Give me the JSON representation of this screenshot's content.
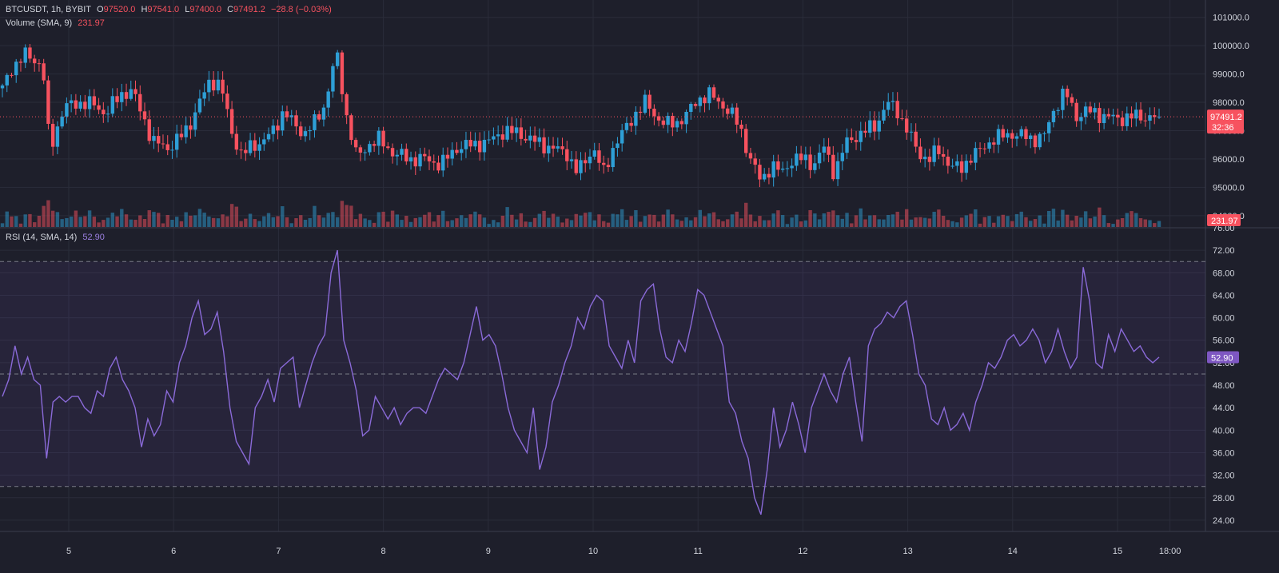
{
  "header": {
    "symbol": "BTCUSDT, 1h, BYBIT",
    "o_label": "O",
    "o_value": "97520.0",
    "h_label": "H",
    "h_value": "97541.0",
    "l_label": "L",
    "l_value": "97400.0",
    "c_label": "C",
    "c_value": "97491.2",
    "change": "−28.8 (−0.03%)"
  },
  "volume_legend": {
    "name": "Volume (SMA, 9)",
    "value": "231.97"
  },
  "rsi_legend": {
    "name": "RSI (14, SMA, 14)",
    "value": "52.90"
  },
  "colors": {
    "background": "#1e1f2b",
    "up": "#2e9fd6",
    "down": "#f7525f",
    "rsi": "#8a6ad8",
    "grid": "#2a2c3a",
    "text": "#d1d4dc"
  },
  "chart_data": [
    {
      "type": "candlestick",
      "title": "BTCUSDT, 1h, BYBIT",
      "x_ticks": [
        "5",
        "6",
        "7",
        "8",
        "9",
        "10",
        "11",
        "12",
        "13",
        "14",
        "15",
        "18:00"
      ],
      "y_ticks": [
        "101000.0",
        "100000.0",
        "99000.0",
        "98000.0",
        "97000.0",
        "96000.0",
        "95000.0",
        "94000.0"
      ],
      "ylim": [
        93600,
        101500
      ],
      "last_price": 97491.2,
      "last_price_label": "97491.2",
      "countdown_label": "32:36",
      "volume_sma_label": "231.97",
      "close_path": [
        {
          "day": 4.35,
          "close": 98300
        },
        {
          "day": 4.45,
          "close": 99200
        },
        {
          "day": 4.6,
          "close": 99700
        },
        {
          "day": 4.75,
          "close": 99300
        },
        {
          "day": 4.82,
          "close": 96300
        },
        {
          "day": 4.95,
          "close": 97800
        },
        {
          "day": 5.1,
          "close": 98000
        },
        {
          "day": 5.25,
          "close": 97900
        },
        {
          "day": 5.35,
          "close": 97600
        },
        {
          "day": 5.5,
          "close": 98300
        },
        {
          "day": 5.6,
          "close": 98400
        },
        {
          "day": 5.7,
          "close": 97600
        },
        {
          "day": 5.8,
          "close": 96600
        },
        {
          "day": 5.95,
          "close": 96400
        },
        {
          "day": 6.05,
          "close": 96700
        },
        {
          "day": 6.15,
          "close": 97200
        },
        {
          "day": 6.25,
          "close": 98000
        },
        {
          "day": 6.35,
          "close": 98800
        },
        {
          "day": 6.45,
          "close": 98600
        },
        {
          "day": 6.55,
          "close": 97000
        },
        {
          "day": 6.65,
          "close": 96100
        },
        {
          "day": 6.75,
          "close": 96500
        },
        {
          "day": 6.85,
          "close": 96600
        },
        {
          "day": 6.95,
          "close": 97000
        },
        {
          "day": 7.05,
          "close": 97700
        },
        {
          "day": 7.15,
          "close": 97200
        },
        {
          "day": 7.25,
          "close": 96900
        },
        {
          "day": 7.35,
          "close": 97300
        },
        {
          "day": 7.45,
          "close": 98000
        },
        {
          "day": 7.55,
          "close": 99800
        },
        {
          "day": 7.65,
          "close": 97500
        },
        {
          "day": 7.75,
          "close": 96000
        },
        {
          "day": 7.85,
          "close": 96500
        },
        {
          "day": 7.95,
          "close": 96700
        },
        {
          "day": 8.1,
          "close": 96200
        },
        {
          "day": 8.25,
          "close": 96000
        },
        {
          "day": 8.4,
          "close": 96000
        },
        {
          "day": 8.55,
          "close": 95800
        },
        {
          "day": 8.7,
          "close": 96400
        },
        {
          "day": 8.85,
          "close": 96500
        },
        {
          "day": 9.0,
          "close": 96600
        },
        {
          "day": 9.15,
          "close": 97000
        },
        {
          "day": 9.3,
          "close": 96900
        },
        {
          "day": 9.45,
          "close": 96600
        },
        {
          "day": 9.6,
          "close": 96400
        },
        {
          "day": 9.75,
          "close": 96200
        },
        {
          "day": 9.85,
          "close": 95500
        },
        {
          "day": 10.0,
          "close": 96400
        },
        {
          "day": 10.1,
          "close": 95500
        },
        {
          "day": 10.2,
          "close": 96500
        },
        {
          "day": 10.3,
          "close": 97000
        },
        {
          "day": 10.4,
          "close": 97600
        },
        {
          "day": 10.5,
          "close": 98000
        },
        {
          "day": 10.6,
          "close": 97500
        },
        {
          "day": 10.7,
          "close": 97200
        },
        {
          "day": 10.8,
          "close": 97300
        },
        {
          "day": 10.9,
          "close": 97600
        },
        {
          "day": 11.0,
          "close": 98100
        },
        {
          "day": 11.1,
          "close": 98300
        },
        {
          "day": 11.2,
          "close": 98000
        },
        {
          "day": 11.3,
          "close": 97700
        },
        {
          "day": 11.4,
          "close": 97100
        },
        {
          "day": 11.5,
          "close": 96000
        },
        {
          "day": 11.6,
          "close": 95200
        },
        {
          "day": 11.7,
          "close": 95800
        },
        {
          "day": 11.8,
          "close": 95500
        },
        {
          "day": 11.9,
          "close": 96000
        },
        {
          "day": 12.0,
          "close": 96000
        },
        {
          "day": 12.1,
          "close": 95800
        },
        {
          "day": 12.2,
          "close": 96400
        },
        {
          "day": 12.3,
          "close": 95500
        },
        {
          "day": 12.4,
          "close": 96500
        },
        {
          "day": 12.5,
          "close": 96800
        },
        {
          "day": 12.6,
          "close": 97000
        },
        {
          "day": 12.7,
          "close": 97200
        },
        {
          "day": 12.8,
          "close": 98000
        },
        {
          "day": 12.9,
          "close": 97700
        },
        {
          "day": 13.0,
          "close": 97000
        },
        {
          "day": 13.1,
          "close": 96200
        },
        {
          "day": 13.2,
          "close": 96000
        },
        {
          "day": 13.3,
          "close": 96300
        },
        {
          "day": 13.4,
          "close": 95800
        },
        {
          "day": 13.5,
          "close": 95600
        },
        {
          "day": 13.6,
          "close": 96100
        },
        {
          "day": 13.7,
          "close": 96300
        },
        {
          "day": 13.8,
          "close": 96700
        },
        {
          "day": 13.9,
          "close": 96800
        },
        {
          "day": 14.0,
          "close": 96900
        },
        {
          "day": 14.1,
          "close": 96800
        },
        {
          "day": 14.2,
          "close": 96700
        },
        {
          "day": 14.3,
          "close": 96800
        },
        {
          "day": 14.4,
          "close": 97800
        },
        {
          "day": 14.5,
          "close": 98400
        },
        {
          "day": 14.6,
          "close": 97500
        },
        {
          "day": 14.7,
          "close": 97700
        },
        {
          "day": 14.8,
          "close": 97600
        },
        {
          "day": 14.9,
          "close": 97500
        },
        {
          "day": 15.0,
          "close": 97400
        },
        {
          "day": 15.1,
          "close": 97491
        }
      ]
    },
    {
      "type": "line",
      "title": "RSI (14, SMA, 14)",
      "y_ticks": [
        "76.00",
        "72.00",
        "68.00",
        "64.00",
        "60.00",
        "56.00",
        "52.00",
        "48.00",
        "44.00",
        "40.00",
        "36.00",
        "32.00",
        "28.00",
        "24.00"
      ],
      "ylim": [
        22,
        76
      ],
      "bands": [
        30,
        50,
        70
      ],
      "last_value": 52.9,
      "last_value_label": "52.90",
      "values": [
        46,
        49,
        55,
        50,
        53,
        49,
        48,
        35,
        45,
        46,
        45,
        46,
        46,
        44,
        43,
        47,
        46,
        51,
        53,
        49,
        47,
        44,
        37,
        42,
        39,
        41,
        47,
        45,
        52,
        55,
        60,
        63,
        57,
        58,
        61,
        54,
        44,
        38,
        36,
        34,
        44,
        46,
        49,
        45,
        51,
        52,
        53,
        44,
        48,
        52,
        55,
        57,
        68,
        72,
        56,
        52,
        47,
        39,
        40,
        46,
        44,
        42,
        44,
        41,
        43,
        44,
        44,
        43,
        46,
        49,
        51,
        50,
        49,
        52,
        57,
        62,
        56,
        57,
        55,
        50,
        44,
        40,
        38,
        36,
        44,
        33,
        37,
        45,
        48,
        52,
        55,
        60,
        58,
        62,
        64,
        63,
        55,
        53,
        51,
        56,
        52,
        63,
        65,
        66,
        58,
        53,
        52,
        56,
        54,
        59,
        65,
        64,
        61,
        58,
        55,
        45,
        43,
        38,
        35,
        28,
        25,
        33,
        44,
        37,
        40,
        45,
        41,
        36,
        44,
        47,
        50,
        47,
        45,
        50,
        53,
        45,
        38,
        55,
        58,
        59,
        61,
        60,
        62,
        63,
        57,
        50,
        48,
        42,
        41,
        44,
        40,
        41,
        43,
        40,
        45,
        48,
        52,
        51,
        53,
        56,
        57,
        55,
        56,
        58,
        56,
        52,
        54,
        58,
        54,
        51,
        53,
        69,
        63,
        52,
        51,
        57,
        54,
        58,
        56,
        54,
        55,
        53,
        52,
        53
      ]
    }
  ]
}
